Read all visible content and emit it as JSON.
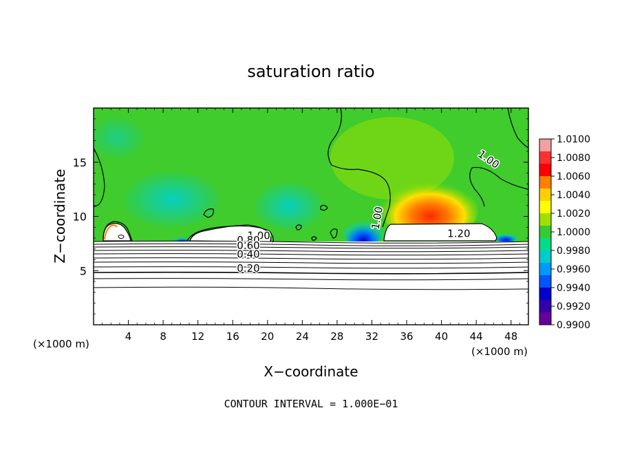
{
  "chart_data": {
    "type": "heatmap",
    "title": "saturation ratio",
    "xlabel": "X−coordinate",
    "ylabel": "Z−coordinate",
    "x_unit_left": "(×1000 m)",
    "x_unit_right": "(×1000 m)",
    "xlim": [
      0,
      50
    ],
    "ylim": [
      0,
      20
    ],
    "x_ticks": [
      4,
      8,
      12,
      16,
      20,
      24,
      28,
      32,
      36,
      40,
      44,
      48
    ],
    "y_ticks": [
      5,
      10,
      15
    ],
    "footer": "CONTOUR INTERVAL = 1.000E−01",
    "colorbar": {
      "levels": [
        "1.0100",
        "1.0080",
        "1.0060",
        "1.0040",
        "1.0020",
        "1.0000",
        "0.9980",
        "0.9960",
        "0.9940",
        "0.9920",
        "0.9900"
      ],
      "colors": [
        "#f4a0a0",
        "#ff3030",
        "#ff0000",
        "#ff7f00",
        "#ffd000",
        "#ffff00",
        "#a0e000",
        "#33cc33",
        "#00dd88",
        "#00cccc",
        "#0099ff",
        "#0055ff",
        "#0000cc",
        "#3300aa",
        "#660099"
      ]
    },
    "contour_labels": [
      {
        "text": "1.00",
        "x": 45.2,
        "y": 15.0,
        "angle": 35
      },
      {
        "text": "1.00",
        "x": 33.0,
        "y": 9.8,
        "angle": -80
      },
      {
        "text": "1.20",
        "x": 42.0,
        "y": 8.1,
        "angle": 0
      },
      {
        "text": "1.00",
        "x": 19.0,
        "y": 7.9,
        "angle": 0
      },
      {
        "text": "0.80",
        "x": 17.8,
        "y": 7.5,
        "angle": 0
      },
      {
        "text": "0.60",
        "x": 17.8,
        "y": 7.0,
        "angle": 0
      },
      {
        "text": "0.40",
        "x": 17.8,
        "y": 6.2,
        "angle": 0
      },
      {
        "text": "0.20",
        "x": 17.8,
        "y": 4.9,
        "angle": 0
      }
    ]
  }
}
